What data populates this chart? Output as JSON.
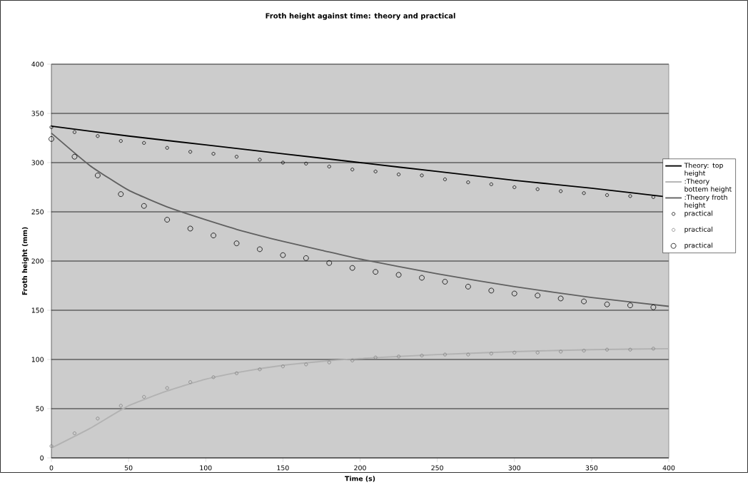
{
  "chart_data": {
    "type": "line",
    "title": "Froth height against time: theory and practical",
    "xlabel": "Time (s)",
    "ylabel": "Froth height (mm)",
    "xlim": [
      0,
      400
    ],
    "xticks": [
      0,
      50,
      100,
      150,
      200,
      250,
      300,
      350,
      400
    ],
    "ylim": [
      0,
      400
    ],
    "yticks": [
      0,
      50,
      100,
      150,
      200,
      250,
      300,
      350,
      400
    ],
    "grid": "y",
    "legend": "right",
    "series": [
      {
        "name": "Theory: top height",
        "marker": "none",
        "color": "#000000",
        "x": [
          0,
          50,
          100,
          150,
          200,
          250,
          300,
          350,
          400
        ],
        "values": [
          337,
          327,
          318,
          309,
          300,
          291,
          282,
          274,
          265
        ]
      },
      {
        "name": ":Theory bottem height",
        "marker": "none",
        "color": "#b2b2b2",
        "x": [
          0,
          25,
          50,
          75,
          100,
          125,
          150,
          175,
          200,
          250,
          300,
          350,
          400
        ],
        "values": [
          10,
          30,
          53,
          68,
          80,
          88,
          94,
          98,
          101,
          105,
          108,
          110,
          111
        ]
      },
      {
        "name": ":Theory froth height",
        "marker": "none",
        "color": "#606060",
        "x": [
          0,
          25,
          50,
          75,
          100,
          125,
          150,
          175,
          200,
          250,
          300,
          350,
          400
        ],
        "values": [
          330,
          297,
          272,
          255,
          242,
          230,
          220,
          211,
          202,
          187,
          174,
          163,
          154
        ]
      },
      {
        "name": "practical",
        "type": "scatter",
        "marker": "circle",
        "color": "#000000",
        "x": [
          0,
          15,
          30,
          45,
          60,
          75,
          90,
          105,
          120,
          135,
          150,
          165,
          180,
          195,
          210,
          225,
          240,
          255,
          270,
          285,
          300,
          315,
          330,
          345,
          360,
          375,
          390
        ],
        "values": [
          336,
          331,
          327,
          322,
          320,
          315,
          311,
          309,
          306,
          303,
          300,
          299,
          296,
          293,
          291,
          288,
          287,
          283,
          280,
          278,
          275,
          273,
          271,
          269,
          267,
          266,
          265
        ]
      },
      {
        "name": "practical",
        "type": "scatter",
        "marker": "circle",
        "color": "#808080",
        "x": [
          0,
          15,
          30,
          45,
          60,
          75,
          90,
          105,
          120,
          135,
          150,
          165,
          180,
          195,
          210,
          225,
          240,
          255,
          270,
          285,
          300,
          315,
          330,
          345,
          360,
          375,
          390
        ],
        "values": [
          12,
          25,
          40,
          53,
          62,
          71,
          77,
          82,
          86,
          90,
          93,
          95,
          97,
          99,
          102,
          103,
          104,
          105,
          105,
          106,
          107,
          107,
          108,
          109,
          110,
          110,
          111
        ]
      },
      {
        "name": "practical",
        "type": "scatter",
        "marker": "circle",
        "color": "#000000",
        "x": [
          0,
          15,
          30,
          45,
          60,
          75,
          90,
          105,
          120,
          135,
          150,
          165,
          180,
          195,
          210,
          225,
          240,
          255,
          270,
          285,
          300,
          315,
          330,
          345,
          360,
          375,
          390
        ],
        "values": [
          324,
          306,
          287,
          268,
          256,
          242,
          233,
          226,
          218,
          212,
          206,
          203,
          198,
          193,
          189,
          186,
          183,
          179,
          174,
          170,
          167,
          165,
          162,
          159,
          156,
          155,
          153
        ]
      }
    ]
  }
}
